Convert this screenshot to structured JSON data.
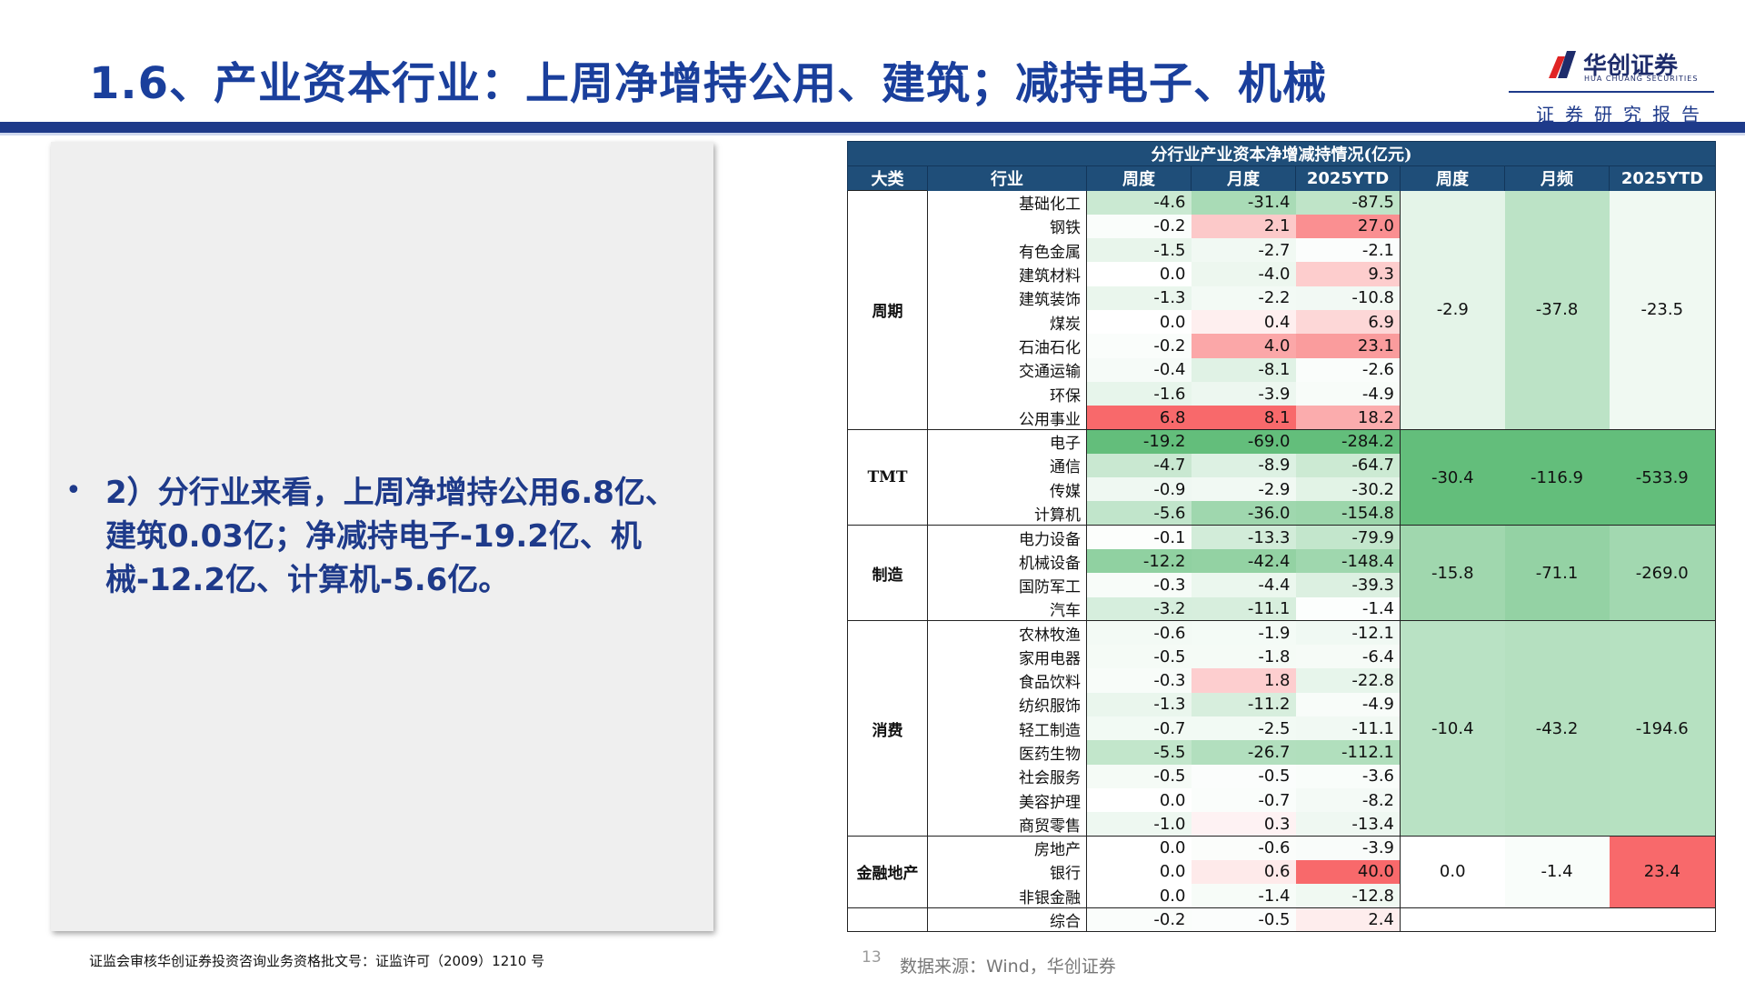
{
  "header": {
    "title": "1.6、产业资本行业：上周净增持公用、建筑；减持电子、机械",
    "logo_cn": "华创证券",
    "logo_en": "HUA CHUANG SECURITIES",
    "report_label": "证券研究报告"
  },
  "left_panel": {
    "bullet": "•",
    "text": "2）分行业来看，上周净增持公用6.8亿、建筑0.03亿；净减持电子-19.2亿、机械-12.2亿、计算机-5.6亿。"
  },
  "table": {
    "caption": "分行业产业资本净增减持情况(亿元)",
    "headers": [
      "大类",
      "行业",
      "周度",
      "月度",
      "2025YTD",
      "周度",
      "月频",
      "2025YTD"
    ],
    "groups": [
      {
        "name": "周期",
        "agg": [
          "-2.9",
          "-37.8",
          "-23.5"
        ],
        "rows": [
          [
            "基础化工",
            "-4.6",
            "-31.4",
            "-87.5"
          ],
          [
            "钢铁",
            "-0.2",
            "2.1",
            "27.0"
          ],
          [
            "有色金属",
            "-1.5",
            "-2.7",
            "-2.1"
          ],
          [
            "建筑材料",
            "0.0",
            "-4.0",
            "9.3"
          ],
          [
            "建筑装饰",
            "-1.3",
            "-2.2",
            "-10.8"
          ],
          [
            "煤炭",
            "0.0",
            "0.4",
            "6.9"
          ],
          [
            "石油石化",
            "-0.2",
            "4.0",
            "23.1"
          ],
          [
            "交通运输",
            "-0.4",
            "-8.1",
            "-2.6"
          ],
          [
            "环保",
            "-1.6",
            "-3.9",
            "-4.9"
          ],
          [
            "公用事业",
            "6.8",
            "8.1",
            "18.2"
          ]
        ]
      },
      {
        "name": "TMT",
        "agg": [
          "-30.4",
          "-116.9",
          "-533.9"
        ],
        "rows": [
          [
            "电子",
            "-19.2",
            "-69.0",
            "-284.2"
          ],
          [
            "通信",
            "-4.7",
            "-8.9",
            "-64.7"
          ],
          [
            "传媒",
            "-0.9",
            "-2.9",
            "-30.2"
          ],
          [
            "计算机",
            "-5.6",
            "-36.0",
            "-154.8"
          ]
        ]
      },
      {
        "name": "制造",
        "agg": [
          "-15.8",
          "-71.1",
          "-269.0"
        ],
        "rows": [
          [
            "电力设备",
            "-0.1",
            "-13.3",
            "-79.9"
          ],
          [
            "机械设备",
            "-12.2",
            "-42.4",
            "-148.4"
          ],
          [
            "国防军工",
            "-0.3",
            "-4.4",
            "-39.3"
          ],
          [
            "汽车",
            "-3.2",
            "-11.1",
            "-1.4"
          ]
        ]
      },
      {
        "name": "消费",
        "agg": [
          "-10.4",
          "-43.2",
          "-194.6"
        ],
        "rows": [
          [
            "农林牧渔",
            "-0.6",
            "-1.9",
            "-12.1"
          ],
          [
            "家用电器",
            "-0.5",
            "-1.8",
            "-6.4"
          ],
          [
            "食品饮料",
            "-0.3",
            "1.8",
            "-22.8"
          ],
          [
            "纺织服饰",
            "-1.3",
            "-11.2",
            "-4.9"
          ],
          [
            "轻工制造",
            "-0.7",
            "-2.5",
            "-11.1"
          ],
          [
            "医药生物",
            "-5.5",
            "-26.7",
            "-112.1"
          ],
          [
            "社会服务",
            "-0.5",
            "-0.5",
            "-3.6"
          ],
          [
            "美容护理",
            "0.0",
            "-0.7",
            "-8.2"
          ],
          [
            "商贸零售",
            "-1.0",
            "0.3",
            "-13.4"
          ]
        ]
      },
      {
        "name": "金融地产",
        "agg": [
          "0.0",
          "-1.4",
          "23.4"
        ],
        "rows": [
          [
            "房地产",
            "0.0",
            "-0.6",
            "-3.9"
          ],
          [
            "银行",
            "0.0",
            "0.6",
            "40.0"
          ],
          [
            "非银金融",
            "0.0",
            "-1.4",
            "-12.8"
          ]
        ]
      },
      {
        "name": "",
        "agg": null,
        "rows": [
          [
            "综合",
            "-0.2",
            "-0.5",
            "2.4"
          ]
        ]
      }
    ]
  },
  "footer": {
    "license": "证监会审核华创证券投资咨询业务资格批文号：证监许可（2009）1210 号",
    "page": "13",
    "source": "数据来源：Wind，华创证券"
  }
}
